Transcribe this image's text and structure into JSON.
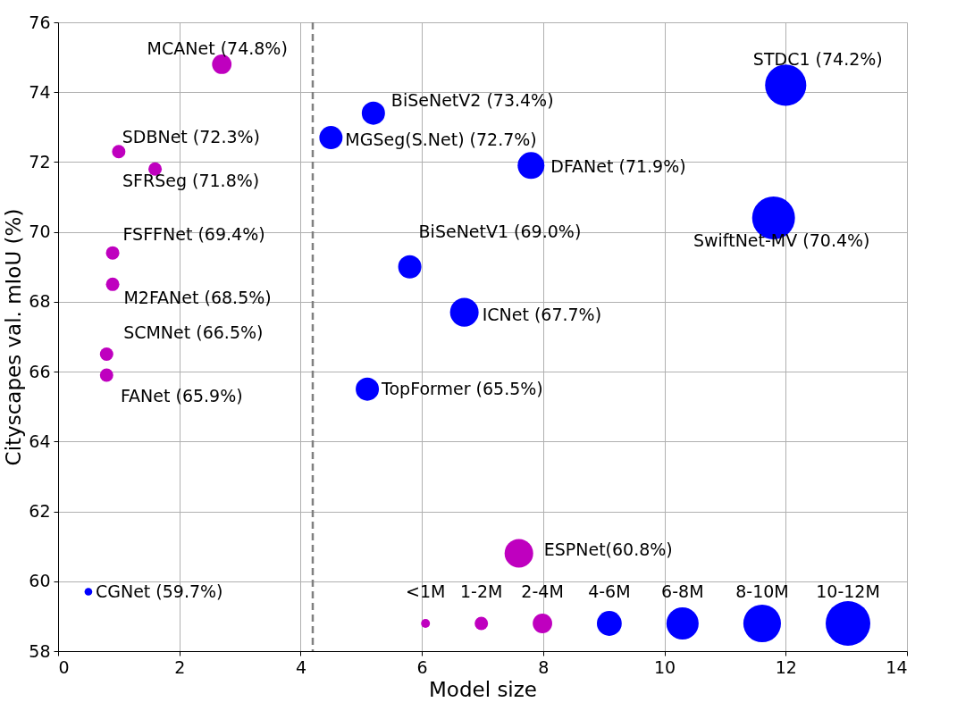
{
  "chart_data": {
    "type": "bubble",
    "xlabel": "Model size",
    "ylabel": "Cityscapes val. mIoU (%)",
    "xlim": [
      0,
      14
    ],
    "ylim": [
      58,
      76
    ],
    "xticks": [
      0,
      2,
      4,
      6,
      8,
      10,
      12,
      14
    ],
    "yticks": [
      58,
      60,
      62,
      64,
      66,
      68,
      70,
      72,
      74,
      76
    ],
    "grid": true,
    "size_legend": [
      {
        "value": 0.04,
        "label": "<1M"
      },
      {
        "value": 0.09,
        "label": "1-2M"
      },
      {
        "value": 0.19,
        "label": "2-4M"
      },
      {
        "value": 0.31,
        "label": "4-6M"
      },
      {
        "value": 0.52,
        "label": "6-8M"
      },
      {
        "value": 0.71,
        "label": "8-10M"
      },
      {
        "value": 1,
        "label": "10-12M"
      }
    ],
    "ref_lines": [
      {
        "axis": "x",
        "value": 4.2,
        "color": "#808080",
        "line_style": "dashed"
      }
    ],
    "series": [
      {
        "color": "#bf00bf",
        "x": [
          2.7,
          1.0,
          1.6,
          0.9,
          0.9,
          0.8,
          0.8,
          7.6
        ],
        "values": [
          74.8,
          72.3,
          71.8,
          69.4,
          68.5,
          66.5,
          65.9,
          60.8
        ],
        "sizes": [
          0.19,
          0.09,
          0.09,
          0.09,
          0.09,
          0.09,
          0.09,
          0.41
        ],
        "value_labels": [
          "MCANet (74.8%)",
          "SDBNet (72.3%)",
          "SFRSeg (71.8%)",
          "FSFFNet (69.4%)",
          "M2FANet (68.5%)",
          "SCMNet (66.5%)",
          "FANet (65.9%)",
          "ESPNet(60.8%)"
        ]
      },
      {
        "color": "#0000ff",
        "x": [
          0.5,
          12.0,
          5.2,
          4.5,
          7.8,
          11.8,
          5.8,
          6.7,
          5.1
        ],
        "values": [
          59.7,
          74.2,
          73.4,
          72.7,
          71.9,
          70.4,
          69.0,
          67.7,
          65.5
        ],
        "sizes": [
          0.03,
          0.85,
          0.27,
          0.27,
          0.36,
          0.92,
          0.27,
          0.41,
          0.27
        ],
        "value_labels": [
          "CGNet (59.7%)",
          "STDC1 (74.2%)",
          "BiSeNetV2 (73.4%)",
          "MGSeg(S.Net) (72.7%)",
          "DFANet (71.9%)",
          "SwiftNet-MV (70.4%)",
          "BiSeNetV1 (69.0%)",
          "ICNet (67.7%)",
          "TopFormer (65.5%)"
        ]
      }
    ]
  }
}
